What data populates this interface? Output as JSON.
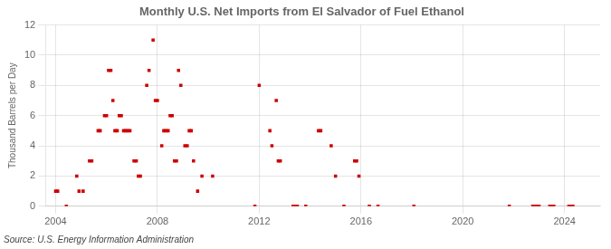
{
  "chart_data": {
    "type": "scatter",
    "title": "Monthly U.S. Net Imports from El Salvador of Fuel Ethanol",
    "ylabel": "Thousand Barrels per Day",
    "annotation": "Source: U.S. Energy Information Administration",
    "color": "#cc0000",
    "marker": "square",
    "grid": true,
    "xlim": [
      2003.6,
      2025.4
    ],
    "xticks": [
      2004,
      2008,
      2012,
      2016,
      2020,
      2024
    ],
    "ylim": [
      0,
      12
    ],
    "yticks": [
      0,
      2,
      4,
      6,
      8,
      10,
      12
    ],
    "x": [
      2004.0,
      2004.08,
      2004.42,
      2004.83,
      2004.92,
      2005.08,
      2005.33,
      2005.42,
      2005.67,
      2005.75,
      2005.92,
      2006.0,
      2006.08,
      2006.17,
      2006.25,
      2006.33,
      2006.42,
      2006.5,
      2006.58,
      2006.67,
      2006.75,
      2006.83,
      2006.92,
      2007.08,
      2007.17,
      2007.25,
      2007.33,
      2007.58,
      2007.67,
      2007.83,
      2007.92,
      2008.0,
      2008.17,
      2008.25,
      2008.33,
      2008.42,
      2008.5,
      2008.58,
      2008.67,
      2008.75,
      2008.83,
      2008.92,
      2009.08,
      2009.17,
      2009.25,
      2009.33,
      2009.42,
      2009.58,
      2009.75,
      2010.17,
      2011.83,
      2012.0,
      2012.42,
      2012.5,
      2012.67,
      2012.75,
      2012.83,
      2013.33,
      2013.42,
      2013.5,
      2013.83,
      2014.33,
      2014.42,
      2014.83,
      2015.0,
      2015.33,
      2015.75,
      2015.83,
      2015.92,
      2016.33,
      2016.67,
      2018.08,
      2021.83,
      2022.75,
      2022.83,
      2022.92,
      2023.0,
      2023.42,
      2023.5,
      2023.58,
      2024.17,
      2024.25,
      2024.33
    ],
    "values": [
      1,
      1,
      0,
      2,
      1,
      1,
      3,
      3,
      5,
      5,
      6,
      6,
      9,
      9,
      7,
      5,
      5,
      6,
      6,
      5,
      5,
      5,
      5,
      3,
      3,
      2,
      2,
      8,
      9,
      11,
      7,
      7,
      4,
      5,
      5,
      5,
      6,
      6,
      3,
      3,
      9,
      8,
      4,
      4,
      5,
      5,
      3,
      1,
      2,
      2,
      0,
      8,
      5,
      4,
      7,
      3,
      3,
      0,
      0,
      0,
      0,
      5,
      5,
      4,
      2,
      0,
      3,
      3,
      2,
      0,
      0,
      0,
      0,
      0,
      0,
      0,
      0,
      0,
      0,
      0,
      0,
      0,
      0
    ]
  }
}
